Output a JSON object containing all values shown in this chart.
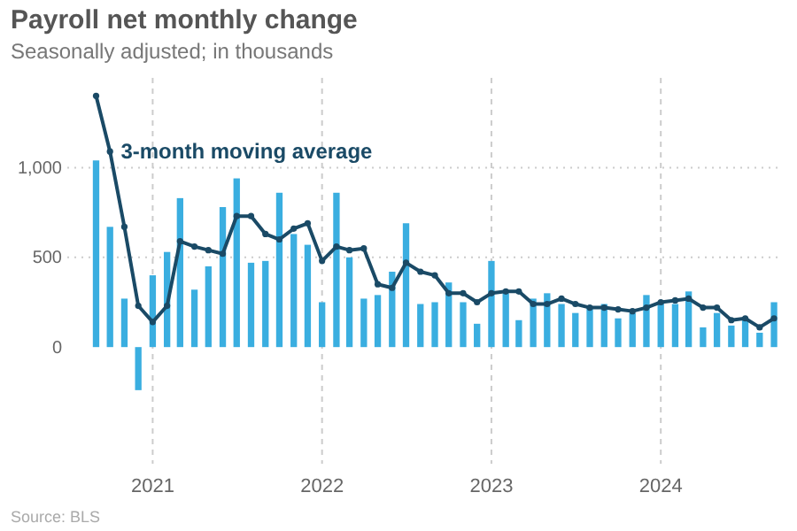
{
  "chart_data": {
    "type": "bar",
    "title": "Payroll net monthly change",
    "subtitle": "Seasonally adjusted; in thousands",
    "annotations": [
      "Source: BLS"
    ],
    "x": [
      "2020-09",
      "2020-10",
      "2020-11",
      "2020-12",
      "2021-01",
      "2021-02",
      "2021-03",
      "2021-04",
      "2021-05",
      "2021-06",
      "2021-07",
      "2021-08",
      "2021-09",
      "2021-10",
      "2021-11",
      "2021-12",
      "2022-01",
      "2022-02",
      "2022-03",
      "2022-04",
      "2022-05",
      "2022-06",
      "2022-07",
      "2022-08",
      "2022-09",
      "2022-10",
      "2022-11",
      "2022-12",
      "2023-01",
      "2023-02",
      "2023-03",
      "2023-04",
      "2023-05",
      "2023-06",
      "2023-07",
      "2023-08",
      "2023-09",
      "2023-10",
      "2023-11",
      "2023-12",
      "2024-01",
      "2024-02",
      "2024-03",
      "2024-04",
      "2024-05",
      "2024-06",
      "2024-07",
      "2024-08",
      "2024-09"
    ],
    "series": [
      {
        "color": "#3aaee0",
        "values": [
          1040,
          670,
          270,
          -240,
          400,
          530,
          830,
          320,
          450,
          780,
          940,
          470,
          480,
          860,
          630,
          570,
          250,
          860,
          500,
          270,
          290,
          420,
          690,
          240,
          250,
          360,
          250,
          130,
          480,
          300,
          150,
          270,
          300,
          240,
          190,
          220,
          240,
          160,
          190,
          290,
          250,
          240,
          310,
          110,
          190,
          120,
          160,
          80,
          250
        ]
      },
      {
        "type": "line",
        "name": "3-month moving average",
        "color": "#1a4a66",
        "marker": "circle",
        "values": [
          1400,
          1090,
          670,
          230,
          140,
          230,
          590,
          560,
          540,
          520,
          730,
          730,
          630,
          600,
          660,
          690,
          480,
          560,
          540,
          550,
          350,
          330,
          470,
          420,
          400,
          300,
          300,
          250,
          300,
          310,
          310,
          240,
          240,
          270,
          240,
          220,
          220,
          210,
          200,
          220,
          250,
          260,
          270,
          220,
          220,
          150,
          160,
          110,
          160
        ]
      }
    ],
    "xlim": [
      "2020-07-01",
      "2024-09-20"
    ],
    "xticks": [
      {
        "value": "2021-01-01",
        "label": "2021"
      },
      {
        "value": "2022-01-01",
        "label": "2022"
      },
      {
        "value": "2023-01-01",
        "label": "2023"
      },
      {
        "value": "2024-01-01",
        "label": "2024"
      }
    ],
    "ylim": [
      -650,
      1500
    ],
    "yticks": [
      0,
      500,
      {
        "value": 1000,
        "label": "1,000"
      }
    ],
    "grid": true
  }
}
